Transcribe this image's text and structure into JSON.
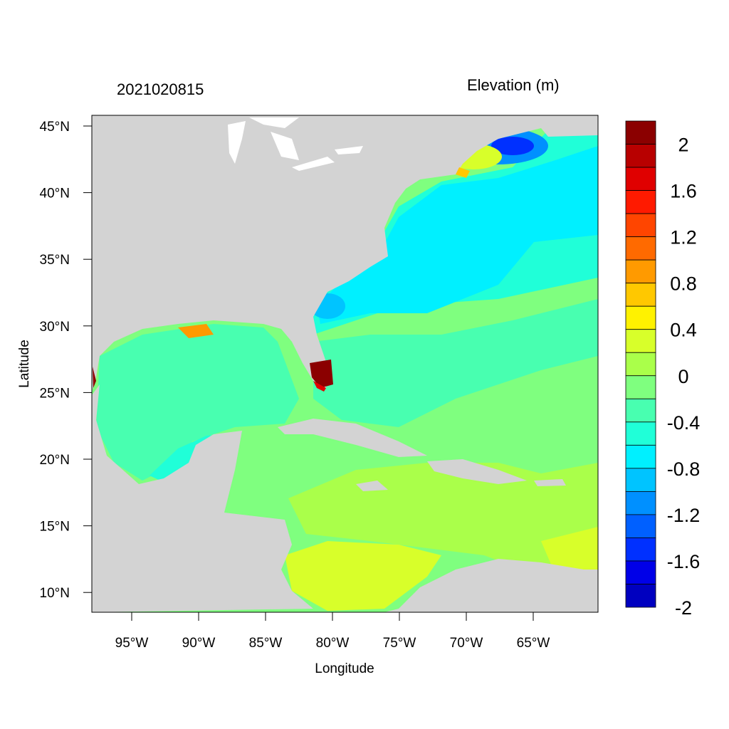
{
  "map": {
    "date_label": "2021020815",
    "variable_label": "Elevation (m)",
    "xlabel": "Longitude",
    "ylabel": "Latitude",
    "lon_range": [
      -98,
      -60.3
    ],
    "lat_range": [
      8.6,
      46
    ],
    "lon_ticks": [
      "95°W",
      "90°W",
      "85°W",
      "80°W",
      "75°W",
      "70°W",
      "65°W"
    ],
    "lat_ticks": [
      "45°N",
      "40°N",
      "35°N",
      "30°N",
      "25°N",
      "20°N",
      "15°N",
      "10°N"
    ],
    "land_color": "#d3d3d3",
    "lake_color": "#ffffff"
  },
  "colorbar": {
    "labels": [
      "2",
      "1.6",
      "1.2",
      "0.8",
      "0.4",
      "0",
      "-0.4",
      "-0.8",
      "-1.2",
      "-1.6",
      "-2"
    ],
    "colors": [
      "#8b0000",
      "#b80000",
      "#e00000",
      "#ff1a00",
      "#ff4500",
      "#ff6a00",
      "#ff9a00",
      "#ffc800",
      "#fff200",
      "#d8ff2a",
      "#aaff4a",
      "#7fff7f",
      "#48ffb0",
      "#20ffd8",
      "#00f0ff",
      "#00c4ff",
      "#0090ff",
      "#0060ff",
      "#0030ff",
      "#0000e8",
      "#0000c0"
    ]
  }
}
